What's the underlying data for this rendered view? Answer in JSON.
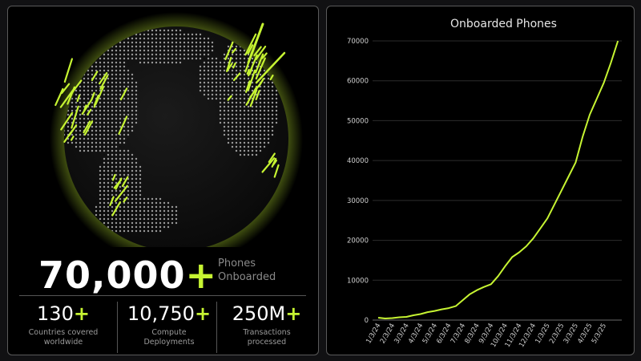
{
  "colors": {
    "accent": "#c6f432",
    "panel_bg": "#000000",
    "page_bg": "#111113",
    "border": "#5a5a5a"
  },
  "stats_panel": {
    "headline": {
      "value": "70,000",
      "plus": "+",
      "label_line1": "Phones",
      "label_line2": "Onboarded"
    },
    "items": [
      {
        "value": "130",
        "plus": "+",
        "line1": "Countries covered",
        "line2": "worldwide"
      },
      {
        "value": "10,750",
        "plus": "+",
        "line1": "Compute",
        "line2": "Deployments"
      },
      {
        "value": "250M",
        "plus": "+",
        "line1": "Transactions",
        "line2": "processed"
      }
    ]
  },
  "chart_data": {
    "type": "line",
    "title": "Onboarded Phones",
    "xlabel": "",
    "ylabel": "",
    "ylim": [
      0,
      70000
    ],
    "yticks": [
      0,
      10000,
      20000,
      30000,
      40000,
      50000,
      60000,
      70000
    ],
    "x_tick_labels": [
      "1/3/24",
      "2/3/24",
      "3/3/24",
      "4/3/24",
      "5/3/24",
      "6/3/24",
      "7/3/24",
      "8/3/24",
      "9/3/24",
      "10/3/24",
      "11/3/24",
      "12/3/24",
      "1/3/25",
      "2/3/25",
      "3/3/25",
      "4/3/25",
      "5/3/25"
    ],
    "grid": true,
    "series": [
      {
        "color": "#c6f432",
        "x": [
          "1/3/24",
          "1/18/24",
          "2/3/24",
          "2/18/24",
          "3/3/24",
          "3/18/24",
          "4/3/24",
          "4/18/24",
          "5/3/24",
          "5/18/24",
          "6/3/24",
          "6/18/24",
          "7/3/24",
          "7/18/24",
          "8/3/24",
          "8/18/24",
          "9/3/24",
          "9/18/24",
          "10/3/24",
          "10/18/24",
          "11/3/24",
          "11/18/24",
          "12/3/24",
          "12/18/24",
          "1/3/25",
          "1/18/25",
          "2/3/25",
          "2/18/25",
          "3/3/25",
          "3/18/25",
          "4/3/25",
          "4/18/25",
          "5/3/25",
          "5/18/25",
          "6/1/25"
        ],
        "values": [
          600,
          400,
          500,
          700,
          800,
          1200,
          1500,
          2000,
          2300,
          2700,
          3000,
          3500,
          5000,
          6500,
          7500,
          8300,
          9000,
          11000,
          13500,
          15800,
          17000,
          18500,
          20500,
          23000,
          25500,
          29000,
          32500,
          36000,
          39500,
          46000,
          51500,
          55500,
          59500,
          64500,
          70000
        ]
      }
    ]
  }
}
